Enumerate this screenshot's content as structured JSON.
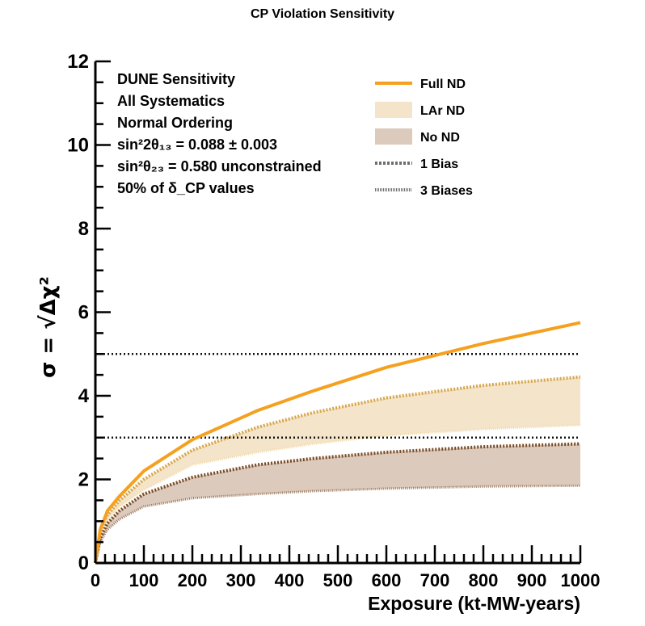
{
  "chart_data": {
    "type": "area",
    "title": "CP Violation Sensitivity",
    "xlabel": "Exposure (kt-MW-years)",
    "ylabel": "σ = √Δχ²",
    "xlim": [
      0,
      1000
    ],
    "ylim": [
      0,
      12
    ],
    "x_ticks": [
      "0",
      "100",
      "200",
      "300",
      "400",
      "500",
      "600",
      "700",
      "800",
      "900",
      "1000"
    ],
    "y_ticks": [
      "0",
      "2",
      "4",
      "6",
      "8",
      "10",
      "12"
    ],
    "grid": false,
    "legend_position": "top-right",
    "info_lines": [
      "DUNE Sensitivity",
      "All Systematics",
      "Normal Ordering",
      "sin²2θ₁₃ = 0.088 ± 0.003",
      "sin²θ₂₃ = 0.580 unconstrained",
      "50% of δ_CP values"
    ],
    "legend": [
      {
        "label": "Full ND",
        "style": "solid-line",
        "color": "#f5a01f"
      },
      {
        "label": "LAr ND",
        "style": "fill",
        "color": "#f4e4c9"
      },
      {
        "label": "No ND",
        "style": "fill",
        "color": "#dccbbd"
      },
      {
        "label": "1 Bias",
        "style": "dotted-thick",
        "color": "#6e6e6e"
      },
      {
        "label": "3 Biases",
        "style": "dotted-fine",
        "color": "#6e6e6e"
      }
    ],
    "x": [
      0,
      10,
      25,
      50,
      100,
      200,
      335,
      450,
      600,
      800,
      1000
    ],
    "series": [
      {
        "name": "Full ND",
        "kind": "line",
        "color": "#f5a01f",
        "values": [
          0,
          0.8,
          1.25,
          1.6,
          2.2,
          2.95,
          3.65,
          4.12,
          4.68,
          5.25,
          5.75
        ]
      },
      {
        "name": "LAr ND",
        "kind": "band",
        "color": "#f4e4c9",
        "upper_color": "#d6a64a",
        "lower_color": "#f2dcb0",
        "upper": [
          0,
          0.75,
          1.15,
          1.5,
          2.0,
          2.7,
          3.25,
          3.6,
          3.95,
          4.25,
          4.45
        ],
        "lower": [
          0,
          0.7,
          1.05,
          1.35,
          1.75,
          2.35,
          2.65,
          2.85,
          3.05,
          3.2,
          3.3
        ]
      },
      {
        "name": "No ND",
        "kind": "band",
        "color": "#dccbbd",
        "upper_color": "#7a4a25",
        "lower_color": "#9a7458",
        "upper": [
          0,
          0.6,
          0.95,
          1.25,
          1.65,
          2.05,
          2.35,
          2.5,
          2.65,
          2.78,
          2.85
        ],
        "lower": [
          0,
          0.5,
          0.8,
          1.05,
          1.35,
          1.55,
          1.65,
          1.72,
          1.78,
          1.83,
          1.85
        ]
      }
    ],
    "reference_lines": [
      3,
      5
    ]
  }
}
